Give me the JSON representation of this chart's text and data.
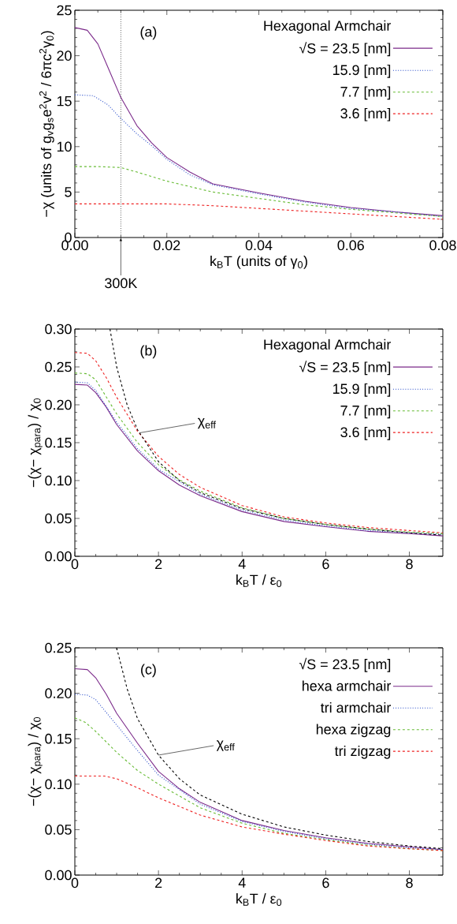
{
  "chart_data": [
    {
      "type": "line",
      "xlabel": "k$_{B}$T (units of γ$_{0}$)",
      "ylabel": "−χ (units of g$_{v}$g$_{s}$e$^{2}$v$^{2}$ / 6πc$^{2}$γ$_{0}$)",
      "legend_title": "Hexagonal Armchair",
      "legend": "top right",
      "annotations": [
        "(a)",
        {
          "text": "300K",
          "x": 0.01,
          "y": 0
        }
      ],
      "xlim": [
        0,
        0.08
      ],
      "ylim": [
        0,
        25
      ],
      "xticks": [
        {
          "value": 0,
          "label": "0.00"
        },
        0.02,
        0.04,
        0.06,
        0.08
      ],
      "yticks": [
        0,
        5,
        10,
        15,
        20,
        25
      ],
      "ref_lines": [
        {
          "axis": "x",
          "value": 0.01,
          "color": "#000000",
          "line_style": "dotted"
        }
      ],
      "series": [
        {
          "name": "√S = 23.5 [nm]",
          "color": "#7b2a8a",
          "line_style": "solid",
          "x": [
            0,
            0.0027,
            0.005,
            0.0072,
            0.01,
            0.0135,
            0.0167,
            0.02,
            0.025,
            0.03,
            0.04,
            0.05,
            0.06,
            0.07,
            0.08
          ],
          "values": [
            23.1,
            22.8,
            21.3,
            18.7,
            15.4,
            12.3,
            10.4,
            8.8,
            7.2,
            5.9,
            4.9,
            4.0,
            3.3,
            2.8,
            2.4
          ]
        },
        {
          "name": "15.9 [nm]",
          "color": "#3355cc",
          "line_style": "dotted",
          "x": [
            0,
            0.004,
            0.0072,
            0.01,
            0.0135,
            0.0167,
            0.02,
            0.025,
            0.03,
            0.04,
            0.05,
            0.06,
            0.07,
            0.08
          ],
          "values": [
            15.7,
            15.6,
            14.6,
            13.1,
            11.4,
            10.1,
            8.6,
            6.9,
            5.8,
            4.8,
            3.9,
            3.2,
            2.8,
            2.3
          ]
        },
        {
          "name": "7.7 [nm]",
          "color": "#66bb33",
          "line_style": "dashed",
          "x": [
            0,
            0.005,
            0.01,
            0.0135,
            0.02,
            0.025,
            0.03,
            0.04,
            0.05,
            0.06,
            0.07,
            0.08
          ],
          "values": [
            7.8,
            7.8,
            7.7,
            7.2,
            6.2,
            5.6,
            5.0,
            4.3,
            3.6,
            3.1,
            2.7,
            2.3
          ]
        },
        {
          "name": "3.6 [nm]",
          "color": "#ee2222",
          "line_style": "dashed",
          "x": [
            0,
            0.01,
            0.02,
            0.03,
            0.04,
            0.05,
            0.06,
            0.07,
            0.08
          ],
          "values": [
            3.7,
            3.7,
            3.7,
            3.5,
            3.2,
            2.9,
            2.6,
            2.3,
            2.0
          ]
        }
      ]
    },
    {
      "type": "line",
      "xlabel": "k$_{B}$T / ε$_{0}$",
      "ylabel": "−(χ− χ$_{para}$) / χ$_{0}$",
      "legend_title": "Hexagonal Armchair",
      "legend": "top right",
      "annotations": [
        "(b)",
        {
          "text": "χ$_{eff}$",
          "x": 1.55,
          "y": 0.163
        }
      ],
      "xlim": [
        0,
        8.8
      ],
      "ylim": [
        0,
        0.3
      ],
      "xticks": [
        0,
        2,
        4,
        6,
        8
      ],
      "yticks": [
        {
          "value": 0,
          "label": "0.00"
        },
        0.05,
        {
          "value": 0.1,
          "label": "0.10"
        },
        0.15,
        {
          "value": 0.2,
          "label": "0.20"
        },
        0.25,
        {
          "value": 0.3,
          "label": "0.30"
        }
      ],
      "series": [
        {
          "name": "√S = 23.5 [nm]",
          "color": "#7b2a8a",
          "line_style": "solid",
          "x": [
            0,
            0.3,
            0.5,
            0.75,
            1,
            1.5,
            2,
            2.5,
            3,
            4,
            5,
            6,
            7,
            8,
            8.8
          ],
          "values": [
            0.227,
            0.226,
            0.216,
            0.197,
            0.174,
            0.139,
            0.113,
            0.094,
            0.08,
            0.059,
            0.046,
            0.039,
            0.033,
            0.03,
            0.027
          ]
        },
        {
          "name": "15.9 [nm]",
          "color": "#3355cc",
          "line_style": "dotted",
          "x": [
            0,
            0.3,
            0.5,
            1,
            1.5,
            2,
            3,
            4,
            5,
            6,
            7,
            8,
            8.8
          ],
          "values": [
            0.23,
            0.229,
            0.219,
            0.177,
            0.142,
            0.115,
            0.082,
            0.061,
            0.048,
            0.04,
            0.034,
            0.031,
            0.029
          ]
        },
        {
          "name": "7.7 [nm]",
          "color": "#66bb33",
          "line_style": "dashed",
          "x": [
            0,
            0.3,
            0.5,
            1,
            1.5,
            2,
            2.5,
            3,
            4,
            5,
            6,
            7,
            8,
            8.8
          ],
          "values": [
            0.242,
            0.241,
            0.233,
            0.188,
            0.15,
            0.121,
            0.101,
            0.086,
            0.064,
            0.05,
            0.042,
            0.036,
            0.032,
            0.03
          ]
        },
        {
          "name": "3.6 [nm]",
          "color": "#ee2222",
          "line_style": "dashed",
          "x": [
            0,
            0.3,
            0.5,
            0.75,
            1,
            1.5,
            2,
            2.5,
            3,
            4,
            5,
            6,
            7,
            8,
            8.8
          ],
          "values": [
            0.269,
            0.268,
            0.258,
            0.236,
            0.21,
            0.165,
            0.132,
            0.108,
            0.091,
            0.067,
            0.052,
            0.044,
            0.038,
            0.034,
            0.031
          ]
        },
        {
          "color": "#000000",
          "line_style": "dashed",
          "x": [
            0.84,
            1,
            1.25,
            1.5,
            2,
            2.5,
            3,
            4,
            5,
            6,
            7,
            8,
            8.8
          ],
          "values": [
            0.3,
            0.25,
            0.2,
            0.167,
            0.125,
            0.1,
            0.084,
            0.063,
            0.05,
            0.042,
            0.036,
            0.031,
            0.028
          ]
        }
      ]
    },
    {
      "type": "line",
      "xlabel": "k$_{B}$T / ε$_{0}$",
      "ylabel": "−(χ− χ$_{para}$) / χ$_{0}$",
      "legend_title": "√S = 23.5 [nm]",
      "legend": "top right",
      "annotations": [
        "(c)",
        {
          "text": "χ$_{eff}$",
          "x": 2.0,
          "y": 0.132
        }
      ],
      "xlim": [
        0,
        8.8
      ],
      "ylim": [
        0,
        0.25
      ],
      "xticks": [
        0,
        2,
        4,
        6,
        8
      ],
      "yticks": [
        {
          "value": 0,
          "label": "0.00"
        },
        0.05,
        {
          "value": 0.1,
          "label": "0.10"
        },
        0.15,
        {
          "value": 0.2,
          "label": "0.20"
        },
        0.25
      ],
      "series": [
        {
          "name": "hexa armchair",
          "color": "#7b2a8a",
          "line_style": "solid",
          "x": [
            0,
            0.3,
            0.5,
            0.75,
            1,
            1.5,
            2,
            2.5,
            3,
            4,
            5,
            6,
            7,
            8,
            8.8
          ],
          "values": [
            0.227,
            0.226,
            0.217,
            0.199,
            0.178,
            0.145,
            0.114,
            0.095,
            0.08,
            0.06,
            0.049,
            0.041,
            0.035,
            0.031,
            0.028
          ]
        },
        {
          "name": "tri armchair",
          "color": "#3355cc",
          "line_style": "dotted",
          "x": [
            0,
            0.3,
            0.5,
            1,
            1.5,
            2,
            3,
            4,
            5,
            6,
            7,
            8,
            8.8
          ],
          "values": [
            0.199,
            0.198,
            0.193,
            0.165,
            0.137,
            0.11,
            0.078,
            0.059,
            0.048,
            0.04,
            0.034,
            0.03,
            0.028
          ]
        },
        {
          "name": "hexa zigzag",
          "color": "#66bb33",
          "line_style": "dashed",
          "x": [
            0,
            0.25,
            0.5,
            1,
            1.5,
            2,
            3,
            4,
            5,
            6,
            7,
            8,
            8.8
          ],
          "values": [
            0.173,
            0.168,
            0.158,
            0.135,
            0.115,
            0.1,
            0.074,
            0.057,
            0.046,
            0.039,
            0.033,
            0.029,
            0.027
          ]
        },
        {
          "name": "tri zigzag",
          "color": "#ee2222",
          "line_style": "dashed",
          "x": [
            0,
            0.7,
            1,
            1.5,
            2,
            3,
            4,
            5,
            6,
            7,
            8,
            8.8
          ],
          "values": [
            0.109,
            0.109,
            0.106,
            0.096,
            0.085,
            0.066,
            0.053,
            0.045,
            0.038,
            0.032,
            0.029,
            0.027
          ]
        },
        {
          "color": "#000000",
          "line_style": "dashed",
          "x": [
            1,
            1.25,
            1.5,
            2,
            2.5,
            3,
            4,
            5,
            6,
            7,
            8,
            8.8
          ],
          "values": [
            0.25,
            0.205,
            0.172,
            0.132,
            0.106,
            0.088,
            0.067,
            0.053,
            0.044,
            0.037,
            0.032,
            0.029
          ]
        }
      ]
    }
  ]
}
